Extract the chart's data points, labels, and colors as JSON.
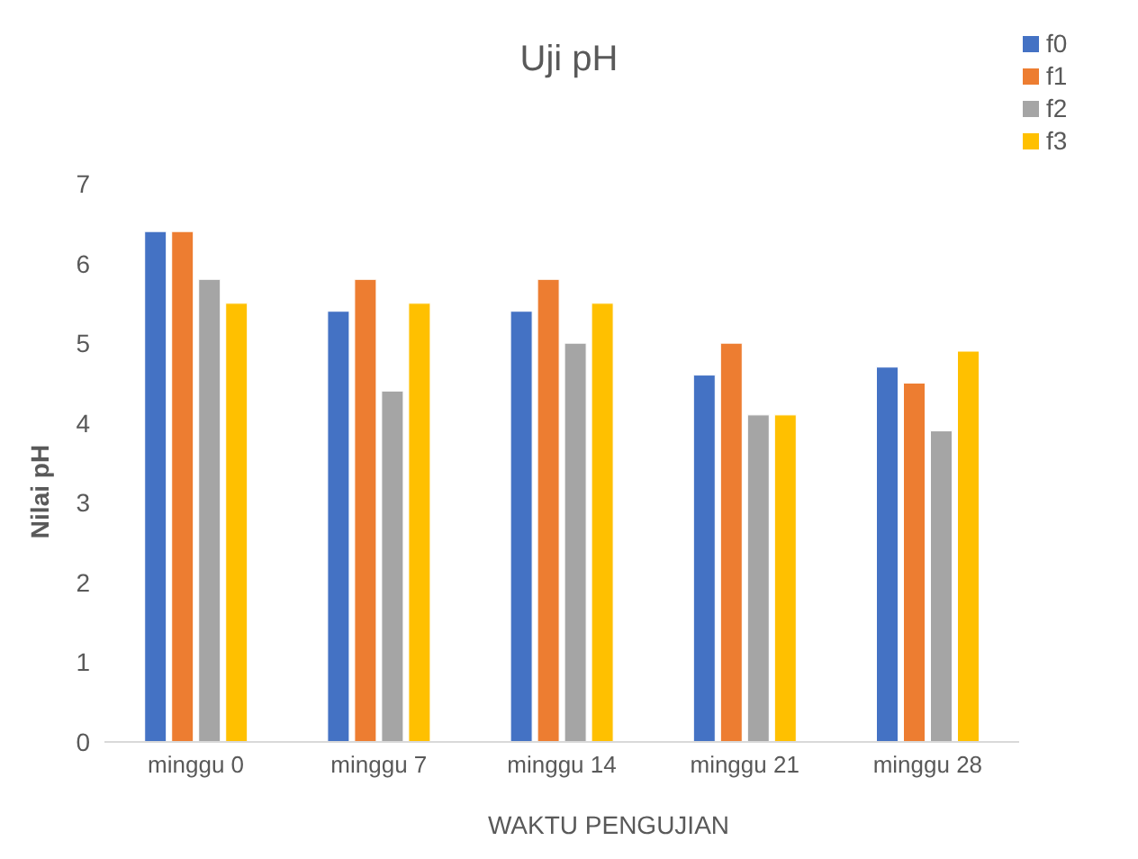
{
  "chart_data": {
    "type": "bar",
    "title": "Uji pH",
    "xlabel": "WAKTU PENGUJIAN",
    "ylabel": "Nilai pH",
    "categories": [
      "minggu 0",
      "minggu 7",
      "minggu 14",
      "minggu 21",
      "minggu 28"
    ],
    "series": [
      {
        "name": "f0",
        "color": "#4472c4",
        "values": [
          6.4,
          5.4,
          5.4,
          4.6,
          4.7
        ]
      },
      {
        "name": "f1",
        "color": "#ed7d31",
        "values": [
          6.4,
          5.8,
          5.8,
          5.0,
          4.5
        ]
      },
      {
        "name": "f2",
        "color": "#a5a5a5",
        "values": [
          5.8,
          4.4,
          5.0,
          4.1,
          3.9
        ]
      },
      {
        "name": "f3",
        "color": "#ffc000",
        "values": [
          5.5,
          5.5,
          5.5,
          4.1,
          4.9
        ]
      }
    ],
    "ylim": [
      0,
      7
    ],
    "yticks": [
      0,
      1,
      2,
      3,
      4,
      5,
      6,
      7
    ],
    "grid": false,
    "legend": "top right"
  }
}
